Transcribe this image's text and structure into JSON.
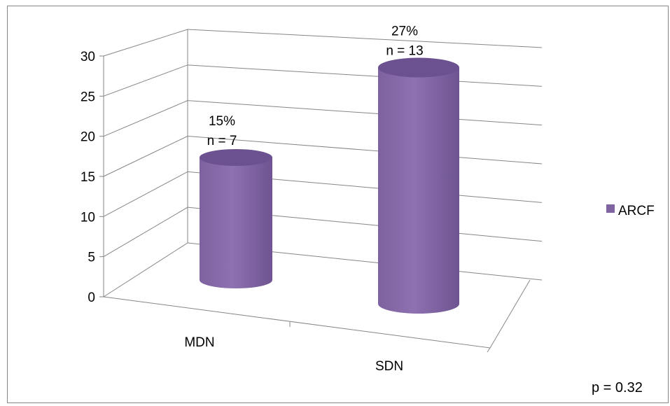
{
  "chart_data": {
    "type": "bar",
    "style": "3d-cylinder",
    "categories": [
      "MDN",
      "SDN"
    ],
    "series": [
      {
        "name": "ARCF",
        "values": [
          15,
          27
        ],
        "color": "#8064a2",
        "labels": [
          {
            "percent": "15%",
            "count": "n = 7"
          },
          {
            "percent": "27%",
            "count": "n = 13"
          }
        ]
      }
    ],
    "yticks": [
      "0",
      "5",
      "10",
      "15",
      "20",
      "25",
      "30"
    ],
    "ylim": [
      0,
      30
    ],
    "grid": true,
    "legend": "right",
    "annotation": "p = 0.32"
  },
  "colors": {
    "bar_side": "#8064a2",
    "bar_top": "#6b5190",
    "grid": "#868686"
  }
}
